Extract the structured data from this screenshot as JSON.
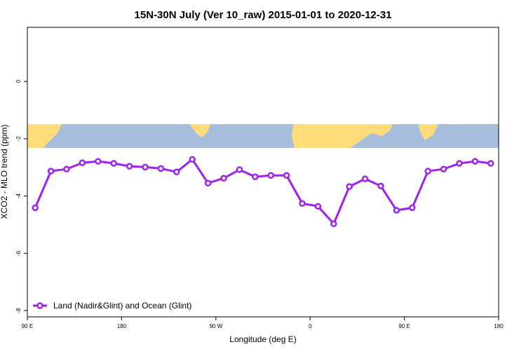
{
  "chart_data": {
    "type": "line",
    "title": "15N-30N July (Ver 10_raw)   2015-01-01 to 2020-12-31",
    "xlabel": "Longitude (deg E)",
    "ylabel": "XCO2 - MLO trend (ppm)",
    "x": [
      97.5,
      112.5,
      127.5,
      142.5,
      157.5,
      172.5,
      187.5,
      202.5,
      217.5,
      232.5,
      247.5,
      262.5,
      277.5,
      292.5,
      307.5,
      322.5,
      337.5,
      352.5,
      367.5,
      382.5,
      397.5,
      412.5,
      427.5,
      442.5,
      457.5,
      472.5,
      487.5,
      502.5,
      517.5,
      532.5
    ],
    "series": [
      {
        "name": "Land (Nadir&Glint) and Ocean (Glint)",
        "color": "#a020f0",
        "values": [
          -4.41,
          -3.13,
          -3.06,
          -2.84,
          -2.79,
          -2.86,
          -2.96,
          -2.99,
          -3.04,
          -3.16,
          -2.72,
          -3.55,
          -3.38,
          -3.08,
          -3.33,
          -3.28,
          -3.28,
          -4.26,
          -4.36,
          -4.97,
          -3.67,
          -3.4,
          -3.65,
          -4.5,
          -4.41,
          -3.13,
          -3.06,
          -2.86,
          -2.79,
          -2.86
        ]
      }
    ],
    "xlim": [
      90,
      540
    ],
    "xticks": [
      {
        "value": 90,
        "label": "90 E"
      },
      {
        "value": 180,
        "label": "180"
      },
      {
        "value": 270,
        "label": "90 W"
      },
      {
        "value": 360,
        "label": "0"
      },
      {
        "value": 450,
        "label": "90 E"
      },
      {
        "value": 540,
        "label": "180"
      }
    ],
    "ylim": [
      -8.22,
      1.89
    ],
    "yticks": [
      0,
      -2,
      -4,
      -6,
      -8
    ],
    "legend": "bottom-left"
  }
}
